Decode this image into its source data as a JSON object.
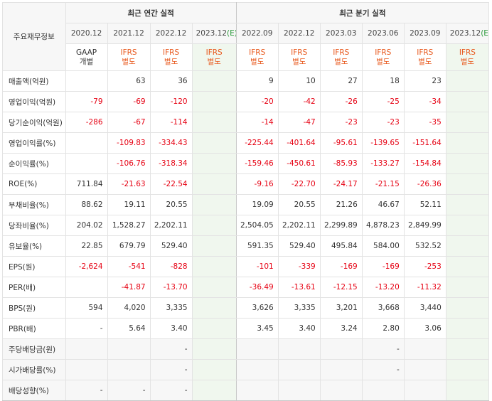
{
  "header": {
    "corner_label": "주요재무정보",
    "annual_label": "최근 연간 실적",
    "quarter_label": "최근 분기 실적"
  },
  "columns": [
    {
      "date": "2020.12",
      "acct1": "GAAP",
      "acct2": "개별",
      "ifrs": false,
      "est": false
    },
    {
      "date": "2021.12",
      "acct1": "IFRS",
      "acct2": "별도",
      "ifrs": true,
      "est": false
    },
    {
      "date": "2022.12",
      "acct1": "IFRS",
      "acct2": "별도",
      "ifrs": true,
      "est": false
    },
    {
      "date": "2023.12",
      "est_mark": "(E)",
      "acct1": "IFRS",
      "acct2": "별도",
      "ifrs": true,
      "est": true
    },
    {
      "date": "2022.09",
      "acct1": "IFRS",
      "acct2": "별도",
      "ifrs": true,
      "est": false
    },
    {
      "date": "2022.12",
      "acct1": "IFRS",
      "acct2": "별도",
      "ifrs": true,
      "est": false
    },
    {
      "date": "2023.03",
      "acct1": "IFRS",
      "acct2": "별도",
      "ifrs": true,
      "est": false
    },
    {
      "date": "2023.06",
      "acct1": "IFRS",
      "acct2": "별도",
      "ifrs": true,
      "est": false
    },
    {
      "date": "2023.09",
      "acct1": "IFRS",
      "acct2": "별도",
      "ifrs": true,
      "est": false
    },
    {
      "date": "2023.12",
      "est_mark": "(E)",
      "acct1": "IFRS",
      "acct2": "별도",
      "ifrs": true,
      "est": true
    }
  ],
  "rows": [
    {
      "label": "매출액(억원)",
      "values": [
        "",
        "63",
        "36",
        "",
        "9",
        "10",
        "27",
        "18",
        "23",
        ""
      ]
    },
    {
      "label": "영업이익(억원)",
      "values": [
        "-79",
        "-69",
        "-120",
        "",
        "-20",
        "-42",
        "-26",
        "-25",
        "-34",
        ""
      ]
    },
    {
      "label": "당기순이익(억원)",
      "values": [
        "-286",
        "-67",
        "-114",
        "",
        "-14",
        "-47",
        "-23",
        "-23",
        "-35",
        ""
      ]
    },
    {
      "label": "영업이익률(%)",
      "values": [
        "",
        "-109.83",
        "-334.43",
        "",
        "-225.44",
        "-401.64",
        "-95.61",
        "-139.65",
        "-151.64",
        ""
      ]
    },
    {
      "label": "순이익률(%)",
      "values": [
        "",
        "-106.76",
        "-318.34",
        "",
        "-159.46",
        "-450.61",
        "-85.93",
        "-133.27",
        "-154.84",
        ""
      ]
    },
    {
      "label": "ROE(%)",
      "values": [
        "711.84",
        "-21.63",
        "-22.54",
        "",
        "-9.16",
        "-22.70",
        "-24.17",
        "-21.15",
        "-26.36",
        ""
      ]
    },
    {
      "label": "부채비율(%)",
      "values": [
        "88.62",
        "19.11",
        "20.55",
        "",
        "19.09",
        "20.55",
        "21.26",
        "46.67",
        "52.11",
        ""
      ]
    },
    {
      "label": "당좌비율(%)",
      "values": [
        "204.02",
        "1,528.27",
        "2,202.11",
        "",
        "2,504.05",
        "2,202.11",
        "2,299.89",
        "4,878.23",
        "2,849.99",
        ""
      ]
    },
    {
      "label": "유보율(%)",
      "values": [
        "22.85",
        "679.79",
        "529.40",
        "",
        "591.35",
        "529.40",
        "495.84",
        "584.00",
        "532.52",
        ""
      ]
    },
    {
      "label": "EPS(원)",
      "values": [
        "-2,624",
        "-541",
        "-828",
        "",
        "-101",
        "-339",
        "-169",
        "-169",
        "-253",
        ""
      ]
    },
    {
      "label": "PER(배)",
      "values": [
        "",
        "-41.87",
        "-13.70",
        "",
        "-36.49",
        "-13.61",
        "-12.15",
        "-13.20",
        "-11.32",
        ""
      ]
    },
    {
      "label": "BPS(원)",
      "values": [
        "594",
        "4,020",
        "3,335",
        "",
        "3,626",
        "3,335",
        "3,201",
        "3,668",
        "3,440",
        ""
      ]
    },
    {
      "label": "PBR(배)",
      "values": [
        "-",
        "5.64",
        "3.40",
        "",
        "3.45",
        "3.40",
        "3.24",
        "2.80",
        "3.06",
        ""
      ]
    },
    {
      "label": "주당배당금(원)",
      "values": [
        "",
        "",
        "-",
        "",
        "",
        "",
        "",
        "-",
        "",
        ""
      ],
      "gray": true
    },
    {
      "label": "시가배당률(%)",
      "values": [
        "",
        "",
        "-",
        "",
        "",
        "",
        "",
        "-",
        "",
        ""
      ],
      "gray": true
    },
    {
      "label": "배당성향(%)",
      "values": [
        "-",
        "-",
        "-",
        "",
        "",
        "",
        "",
        "",
        "",
        ""
      ],
      "gray": true
    }
  ],
  "colors": {
    "negative": "#e60012",
    "ifrs": "#e8581c",
    "estimate": "#2a9a3a",
    "estimate_bg": "#f0f7ee"
  }
}
